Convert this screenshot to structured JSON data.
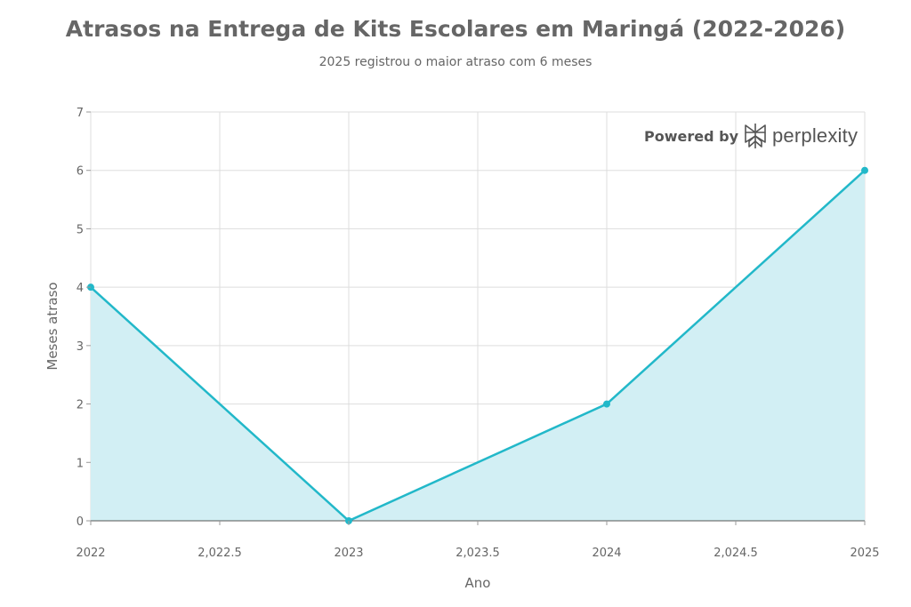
{
  "header": {
    "title": "Atrasos na Entrega de Kits Escolares em Maringá (2022-2026)",
    "subtitle": "2025 registrou o maior atraso com 6 meses"
  },
  "watermark": {
    "powered_by": "Powered by",
    "brand": "perplexity"
  },
  "colors": {
    "line": "#22b8c9",
    "area": "#d2eff4",
    "grid": "#dddddd",
    "zero_line": "#555555"
  },
  "chart_data": {
    "type": "area",
    "title": "Atrasos na Entrega de Kits Escolares em Maringá (2022-2026)",
    "subtitle": "2025 registrou o maior atraso com 6 meses",
    "xlabel": "Ano",
    "ylabel": "Meses atraso",
    "x": [
      2022,
      2023,
      2024,
      2025
    ],
    "series": [
      {
        "values": [
          4,
          0,
          2,
          6
        ]
      }
    ],
    "xlim": [
      2022,
      2025
    ],
    "ylim": [
      0,
      7
    ],
    "x_ticks": [
      2022,
      2022.5,
      2023,
      2023.5,
      2024,
      2024.5,
      2025
    ],
    "x_tick_labels": [
      "2022",
      "2,022.5",
      "2023",
      "2,023.5",
      "2024",
      "2,024.5",
      "2025"
    ],
    "y_ticks": [
      0,
      1,
      2,
      3,
      4,
      5,
      6,
      7
    ],
    "y_tick_labels": [
      "0",
      "1",
      "2",
      "3",
      "4",
      "5",
      "6",
      "7"
    ],
    "grid": true,
    "legend": "none"
  }
}
